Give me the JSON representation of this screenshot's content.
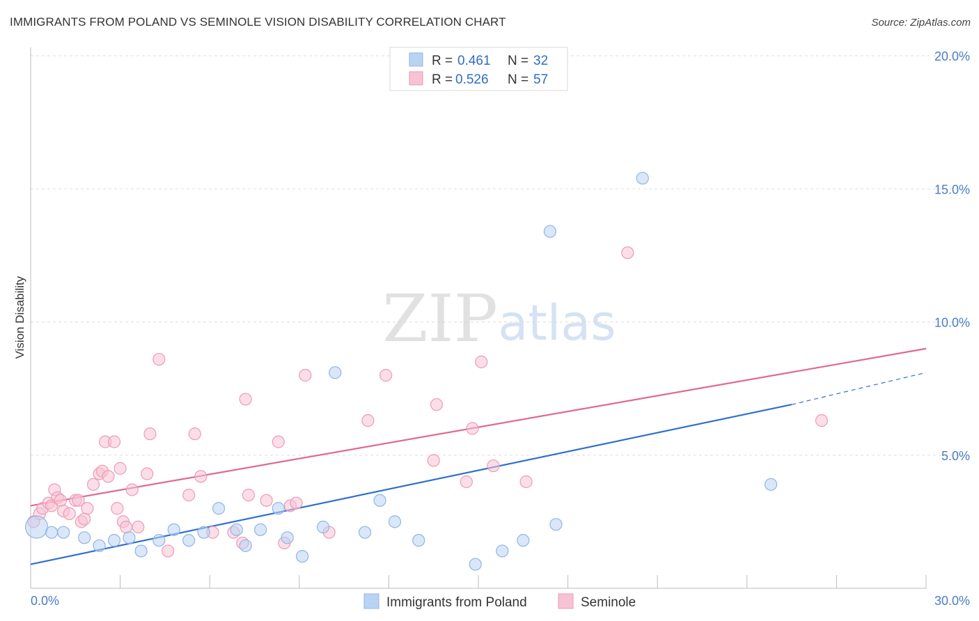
{
  "header": {
    "title": "IMMIGRANTS FROM POLAND VS SEMINOLE VISION DISABILITY CORRELATION CHART",
    "source": "Source: ZipAtlas.com"
  },
  "watermark": {
    "zip": "ZIP",
    "atlas": "atlas"
  },
  "colors": {
    "poland_fill": "#b9d3f3",
    "poland_stroke": "#8fb5e6",
    "poland_line": "#2f6fd0",
    "seminole_fill": "#f7c3d4",
    "seminole_stroke": "#ee9ab5",
    "seminole_line": "#e06893",
    "tick_text": "#4a7cc9",
    "grid": "#dddddd"
  },
  "legend": {
    "rows": [
      {
        "r_label": "R =",
        "r_value": "0.461",
        "n_label": "N =",
        "n_value": "32"
      },
      {
        "r_label": "R =",
        "r_value": "0.526",
        "n_label": "N =",
        "n_value": "57"
      }
    ]
  },
  "chart_data": {
    "type": "scatter",
    "title": "IMMIGRANTS FROM POLAND VS SEMINOLE VISION DISABILITY CORRELATION CHART",
    "xlabel": "",
    "ylabel": "Vision Disability",
    "xlim": [
      0,
      30
    ],
    "ylim": [
      0,
      20
    ],
    "x_tick_labels": [
      "0.0%",
      "30.0%"
    ],
    "y_ticks": [
      5,
      10,
      15,
      20
    ],
    "y_tick_labels": [
      "5.0%",
      "10.0%",
      "15.0%",
      "20.0%"
    ],
    "grid": "horizontal dashed",
    "legend_position": "top-center",
    "series": [
      {
        "name": "Immigrants from Poland",
        "R": 0.461,
        "N": 32,
        "trend": {
          "x0": 0,
          "y0": 0.9,
          "x1": 25.5,
          "y1": 6.9,
          "dashed_to_x": 30,
          "dashed_to_y": 8.1
        },
        "points": [
          [
            0.2,
            2.3
          ],
          [
            0.7,
            2.1
          ],
          [
            1.1,
            2.1
          ],
          [
            1.8,
            1.9
          ],
          [
            2.3,
            1.6
          ],
          [
            2.8,
            1.8
          ],
          [
            3.3,
            1.9
          ],
          [
            3.7,
            1.4
          ],
          [
            4.3,
            1.8
          ],
          [
            4.8,
            2.2
          ],
          [
            5.3,
            1.8
          ],
          [
            5.8,
            2.1
          ],
          [
            6.3,
            3.0
          ],
          [
            6.9,
            2.2
          ],
          [
            7.2,
            1.6
          ],
          [
            7.7,
            2.2
          ],
          [
            8.3,
            3.0
          ],
          [
            8.6,
            1.9
          ],
          [
            9.1,
            1.2
          ],
          [
            9.8,
            2.3
          ],
          [
            10.2,
            8.1
          ],
          [
            11.2,
            2.1
          ],
          [
            11.7,
            3.3
          ],
          [
            12.2,
            2.5
          ],
          [
            13.0,
            1.8
          ],
          [
            14.9,
            0.9
          ],
          [
            15.8,
            1.4
          ],
          [
            16.5,
            1.8
          ],
          [
            17.4,
            13.4
          ],
          [
            17.6,
            2.4
          ],
          [
            20.5,
            15.4
          ],
          [
            24.8,
            3.9
          ]
        ]
      },
      {
        "name": "Seminole",
        "R": 0.526,
        "N": 57,
        "trend": {
          "x0": 0,
          "y0": 3.1,
          "x1": 30,
          "y1": 9.0
        },
        "points": [
          [
            0.1,
            2.5
          ],
          [
            0.3,
            2.8
          ],
          [
            0.4,
            3.0
          ],
          [
            0.6,
            3.2
          ],
          [
            0.7,
            3.1
          ],
          [
            0.8,
            3.7
          ],
          [
            0.9,
            3.4
          ],
          [
            1.0,
            3.3
          ],
          [
            1.1,
            2.9
          ],
          [
            1.3,
            2.8
          ],
          [
            1.5,
            3.3
          ],
          [
            1.6,
            3.3
          ],
          [
            1.7,
            2.5
          ],
          [
            1.8,
            2.6
          ],
          [
            1.9,
            3.0
          ],
          [
            2.1,
            3.9
          ],
          [
            2.3,
            4.3
          ],
          [
            2.4,
            4.4
          ],
          [
            2.5,
            5.5
          ],
          [
            2.6,
            4.2
          ],
          [
            2.8,
            5.5
          ],
          [
            2.9,
            3.0
          ],
          [
            3.0,
            4.5
          ],
          [
            3.1,
            2.5
          ],
          [
            3.2,
            2.3
          ],
          [
            3.4,
            3.7
          ],
          [
            3.6,
            2.3
          ],
          [
            3.9,
            4.3
          ],
          [
            4.0,
            5.8
          ],
          [
            4.3,
            8.6
          ],
          [
            4.6,
            1.4
          ],
          [
            5.3,
            3.5
          ],
          [
            5.5,
            5.8
          ],
          [
            5.7,
            4.2
          ],
          [
            6.1,
            2.1
          ],
          [
            6.8,
            2.1
          ],
          [
            7.1,
            1.7
          ],
          [
            7.2,
            7.1
          ],
          [
            7.3,
            3.5
          ],
          [
            7.9,
            3.3
          ],
          [
            8.3,
            5.5
          ],
          [
            8.5,
            1.7
          ],
          [
            8.7,
            3.1
          ],
          [
            8.9,
            3.2
          ],
          [
            9.2,
            8.0
          ],
          [
            10.0,
            2.1
          ],
          [
            11.3,
            6.3
          ],
          [
            11.9,
            8.0
          ],
          [
            13.5,
            4.8
          ],
          [
            13.6,
            6.9
          ],
          [
            14.6,
            4.0
          ],
          [
            14.8,
            6.0
          ],
          [
            15.1,
            8.5
          ],
          [
            15.5,
            4.6
          ],
          [
            16.6,
            4.0
          ],
          [
            20.0,
            12.6
          ],
          [
            26.5,
            6.3
          ]
        ]
      }
    ]
  }
}
